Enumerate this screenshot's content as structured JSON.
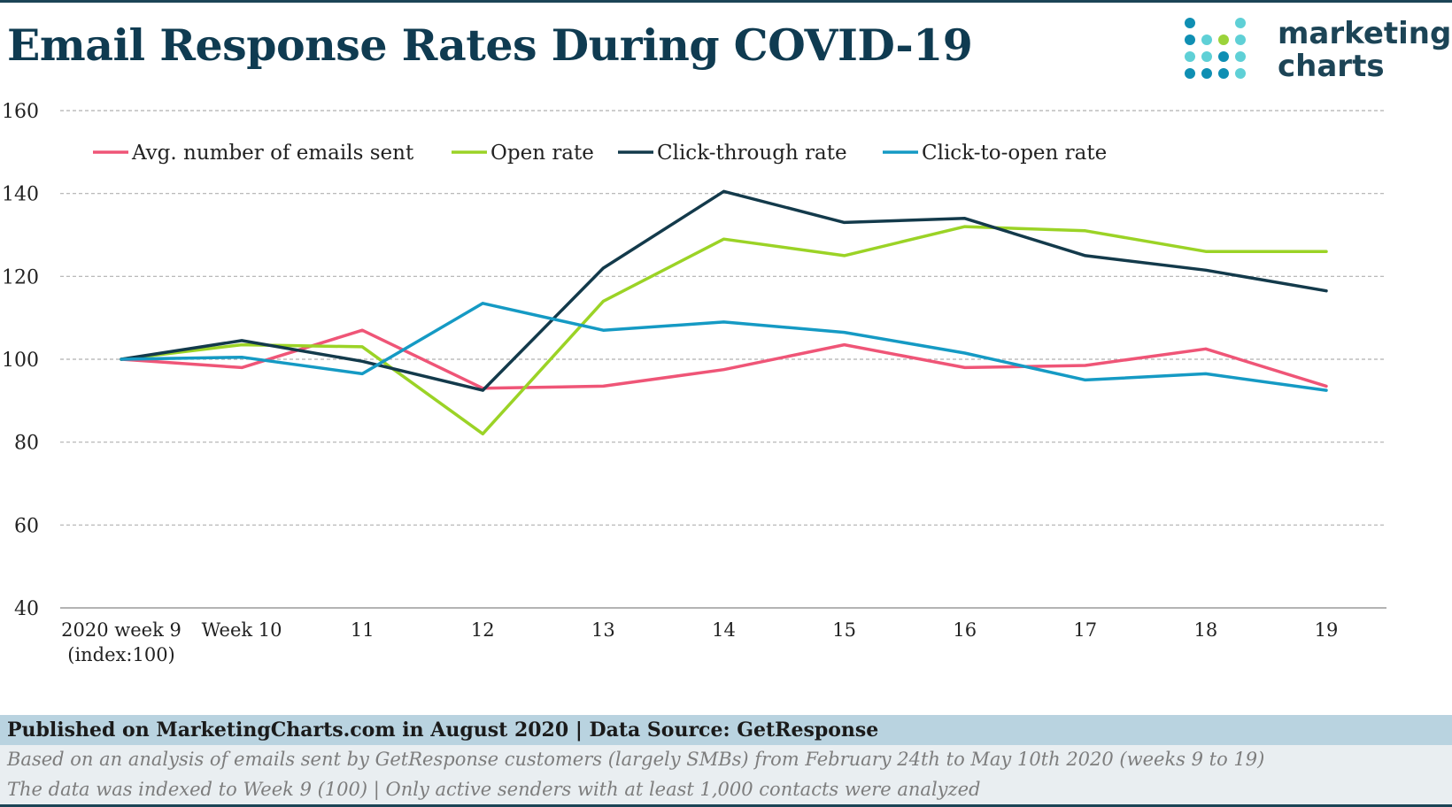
{
  "title": "Email Response Rates During COVID-19",
  "logo": {
    "line1": "marketing",
    "line2": "charts",
    "dot_colors": [
      "#0f8fb3",
      "#5fd0d6",
      "#9bd33a"
    ]
  },
  "footer": {
    "source": "Published on MarketingCharts.com in August 2020 | Data Source: GetResponse",
    "note1": "Based on an analysis of emails sent by GetResponse customers (largely SMBs) from February 24th to May 10th 2020 (weeks 9 to 19)",
    "note2": "The data was indexed to Week 9 (100) | Only active senders with at least 1,000 contacts were analyzed"
  },
  "chart_data": {
    "type": "line",
    "title": "Email Response Rates During COVID-19",
    "categories": [
      [
        "2020 week 9",
        "(index:100)"
      ],
      [
        "Week 10"
      ],
      [
        "11"
      ],
      [
        "12"
      ],
      [
        "13"
      ],
      [
        "14"
      ],
      [
        "15"
      ],
      [
        "16"
      ],
      [
        "17"
      ],
      [
        "18"
      ],
      [
        "19"
      ]
    ],
    "ylim": [
      40,
      160
    ],
    "yticks": [
      40,
      60,
      80,
      100,
      120,
      140,
      160
    ],
    "grid": true,
    "legend_position": "top",
    "series": [
      {
        "name": "Avg. number of emails sent",
        "color": "#ef5577",
        "values": [
          100,
          98,
          107,
          93,
          93.5,
          97.5,
          103.5,
          98,
          98.5,
          102.5,
          93.5
        ]
      },
      {
        "name": "Open rate",
        "color": "#9bd326",
        "values": [
          100,
          103.5,
          103,
          82,
          114,
          129,
          125,
          132,
          131,
          126,
          126
        ]
      },
      {
        "name": "Click-through rate",
        "color": "#133a4b",
        "values": [
          100,
          104.5,
          99.5,
          92.5,
          122,
          140.5,
          133,
          134,
          125,
          121.5,
          116.5
        ]
      },
      {
        "name": "Click-to-open rate",
        "color": "#159ac4",
        "values": [
          100,
          100.5,
          96.5,
          113.5,
          107,
          109,
          106.5,
          101.5,
          95,
          96.5,
          92.5
        ]
      }
    ]
  }
}
